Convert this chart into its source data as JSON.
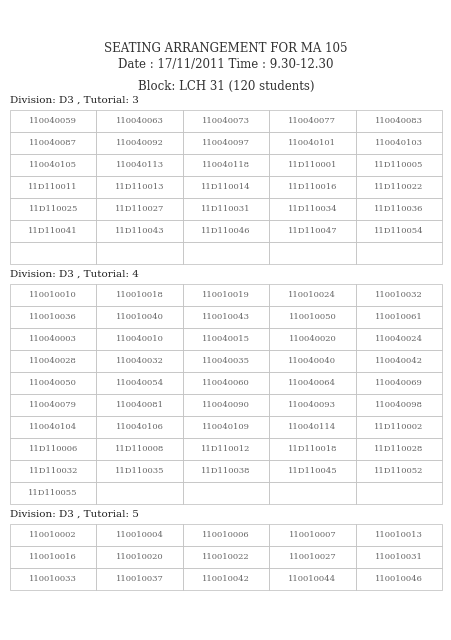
{
  "title1": "SEATING ARRANGEMENT FOR MA 105",
  "title2": "Date : 17/11/2011 Time : 9.30-12.30",
  "block": "Block: LCH 31 (120 students)",
  "sections": [
    {
      "label": "Division: D3 , Tutorial: 3",
      "rows": [
        [
          "110040059",
          "110040063",
          "110040073",
          "110040077",
          "110040083"
        ],
        [
          "110040087",
          "110040092",
          "110040097",
          "110040101",
          "110040103"
        ],
        [
          "110040105",
          "110040113",
          "110040118",
          "11D110001",
          "11D110005"
        ],
        [
          "11D110011",
          "11D110013",
          "11D110014",
          "11D110016",
          "11D110022"
        ],
        [
          "11D110025",
          "11D110027",
          "11D110031",
          "11D110034",
          "11D110036"
        ],
        [
          "11D110041",
          "11D110043",
          "11D110046",
          "11D110047",
          "11D110054"
        ],
        [
          "",
          "",
          "",
          "",
          ""
        ]
      ]
    },
    {
      "label": "Division: D3 , Tutorial: 4",
      "rows": [
        [
          "110010010",
          "110010018",
          "110010019",
          "110010024",
          "110010032"
        ],
        [
          "110010036",
          "110010040",
          "110010043",
          "110010050",
          "110010061"
        ],
        [
          "110040003",
          "110040010",
          "110040015",
          "110040020",
          "110040024"
        ],
        [
          "110040028",
          "110040032",
          "110040035",
          "110040040",
          "110040042"
        ],
        [
          "110040050",
          "110040054",
          "110040060",
          "110040064",
          "110040069"
        ],
        [
          "110040079",
          "110040081",
          "110040090",
          "110040093",
          "110040098"
        ],
        [
          "110040104",
          "110040106",
          "110040109",
          "110040114",
          "11D110002"
        ],
        [
          "11D110006",
          "11D110008",
          "11D110012",
          "11D110018",
          "11D110028"
        ],
        [
          "11D110032",
          "11D110035",
          "11D110038",
          "11D110045",
          "11D110052"
        ],
        [
          "11D110055",
          "",
          "",
          "",
          ""
        ]
      ]
    },
    {
      "label": "Division: D3 , Tutorial: 5",
      "rows": [
        [
          "110010002",
          "110010004",
          "110010006",
          "110010007",
          "110010013"
        ],
        [
          "110010016",
          "110010020",
          "110010022",
          "110010027",
          "110010031"
        ],
        [
          "110010033",
          "110010037",
          "110010042",
          "110010044",
          "110010046"
        ]
      ]
    }
  ],
  "bg_color": "#ffffff",
  "border_color": "#bbbbbb",
  "cell_text_color": "#666666",
  "title_color": "#333333",
  "label_color": "#222222",
  "title_font_size": 8.5,
  "block_font_size": 8.5,
  "label_font_size": 7.5,
  "cell_font_size": 6.0
}
